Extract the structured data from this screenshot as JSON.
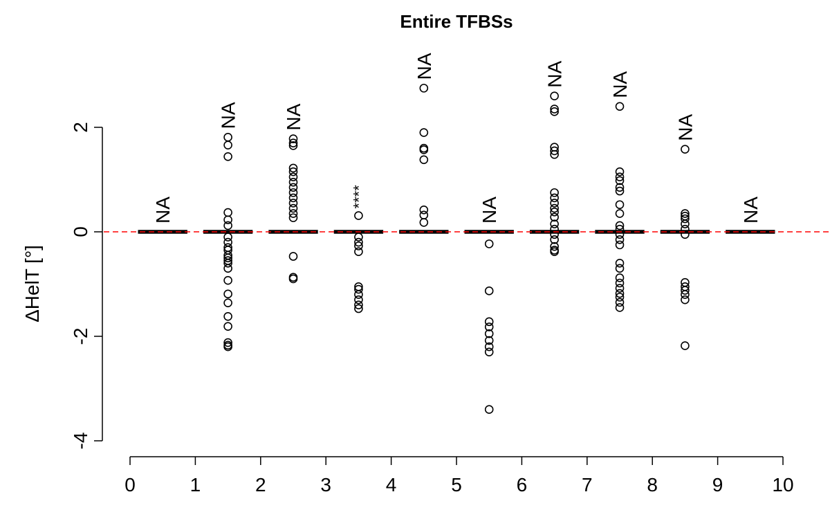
{
  "chart_data": {
    "type": "box",
    "title": "Entire TFBSs",
    "xlabel": "",
    "ylabel": "ΔHelT [°]",
    "xlim": [
      0,
      10
    ],
    "ylim": [
      -4,
      2
    ],
    "x_ticks": [
      "0",
      "1",
      "2",
      "3",
      "4",
      "5",
      "6",
      "7",
      "8",
      "9",
      "10"
    ],
    "y_ticks": [
      "-4",
      "-2",
      "0",
      "2"
    ],
    "reference_line": {
      "y": 0,
      "color": "#ff0000",
      "style": "dashed"
    },
    "boxes": [
      {
        "position": 0.5,
        "median": 0,
        "q1": 0,
        "q3": 0,
        "annotation": "NA",
        "outliers": []
      },
      {
        "position": 1.5,
        "median": 0,
        "q1": 0,
        "q3": 0,
        "annotation": "NA",
        "outliers": [
          1.81,
          1.66,
          1.44,
          0.37,
          0.23,
          0.12,
          -0.1,
          -0.2,
          -0.3,
          -0.35,
          -0.45,
          -0.5,
          -0.55,
          -0.6,
          -0.7,
          -0.93,
          -1.19,
          -1.36,
          -1.62,
          -1.81,
          -2.12,
          -2.17,
          -2.2
        ]
      },
      {
        "position": 2.5,
        "median": 0,
        "q1": 0,
        "q3": 0,
        "annotation": "NA",
        "outliers": [
          1.78,
          1.7,
          1.65,
          1.22,
          1.15,
          1.05,
          0.95,
          0.85,
          0.75,
          0.65,
          0.55,
          0.45,
          0.35,
          0.27,
          -0.47,
          -0.87,
          -0.9
        ]
      },
      {
        "position": 3.5,
        "median": 0,
        "q1": 0,
        "q3": 0,
        "annotation": "****",
        "outliers": [
          0.31,
          -0.1,
          -0.2,
          -0.27,
          -0.38,
          -1.05,
          -1.1,
          -1.2,
          -1.3,
          -1.4,
          -1.47
        ]
      },
      {
        "position": 4.5,
        "median": 0,
        "q1": 0,
        "q3": 0,
        "annotation": "NA",
        "outliers": [
          2.75,
          1.9,
          1.6,
          1.57,
          1.38,
          0.42,
          0.32,
          0.18
        ]
      },
      {
        "position": 5.5,
        "median": 0,
        "q1": 0,
        "q3": 0,
        "annotation": "NA",
        "outliers": [
          -0.23,
          -1.13,
          -1.72,
          -1.82,
          -1.95,
          -2.08,
          -2.2,
          -2.3,
          -3.4
        ]
      },
      {
        "position": 6.5,
        "median": 0,
        "q1": 0,
        "q3": 0,
        "annotation": "NA",
        "outliers": [
          2.6,
          2.35,
          2.3,
          1.62,
          1.55,
          1.48,
          0.75,
          0.65,
          0.55,
          0.45,
          0.38,
          0.28,
          0.15,
          0.05,
          -0.05,
          -0.15,
          -0.28,
          -0.35,
          -0.38
        ]
      },
      {
        "position": 7.5,
        "median": 0,
        "q1": 0,
        "q3": 0,
        "annotation": "NA",
        "outliers": [
          2.4,
          1.15,
          1.05,
          0.98,
          0.85,
          0.78,
          0.52,
          0.35,
          0.12,
          0.05,
          -0.05,
          -0.15,
          -0.25,
          -0.6,
          -0.7,
          -0.88,
          -0.98,
          -1.08,
          -1.18,
          -1.25,
          -1.35,
          -1.45
        ]
      },
      {
        "position": 8.5,
        "median": 0,
        "q1": 0,
        "q3": 0,
        "annotation": "NA",
        "outliers": [
          1.58,
          0.35,
          0.3,
          0.25,
          0.15,
          0.05,
          -0.05,
          -0.97,
          -1.05,
          -1.12,
          -1.2,
          -1.3,
          -2.18
        ]
      },
      {
        "position": 9.5,
        "median": 0,
        "q1": 0,
        "q3": 0,
        "annotation": "NA",
        "outliers": []
      }
    ]
  }
}
